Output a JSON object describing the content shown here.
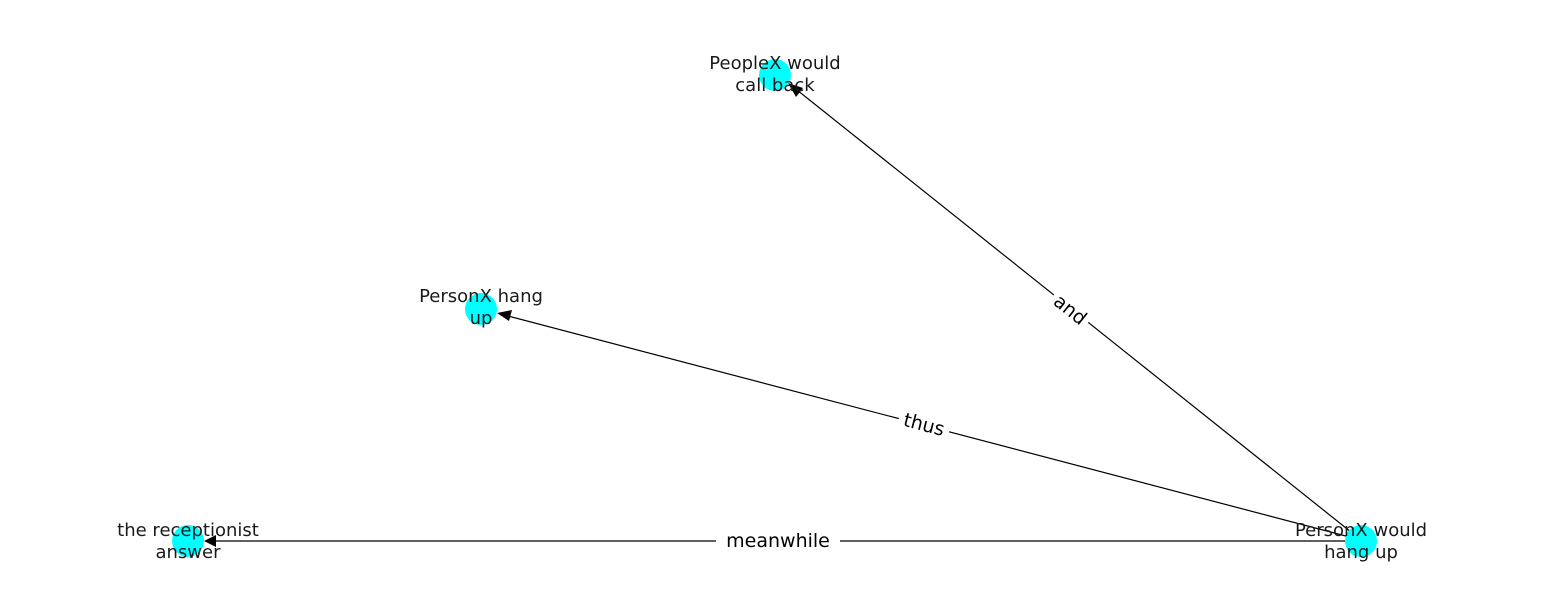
{
  "colors": {
    "node": "#00ffff",
    "edge": "#000000",
    "text": "#1a1a1a"
  },
  "nodes": {
    "person_would_hang_up": {
      "lines": [
        "PersonX would",
        "hang up"
      ]
    },
    "people_call_back": {
      "lines": [
        "PeopleX would",
        "call back"
      ]
    },
    "person_hang_up": {
      "lines": [
        "PersonX hang",
        "up"
      ]
    },
    "receptionist": {
      "lines": [
        "the receptionist",
        "answer"
      ]
    }
  },
  "edges": {
    "and": {
      "source": "person_would_hang_up",
      "target": "people_call_back",
      "label": "and"
    },
    "thus": {
      "source": "person_would_hang_up",
      "target": "person_hang_up",
      "label": "thus"
    },
    "meanwhile": {
      "source": "person_would_hang_up",
      "target": "receptionist",
      "label": "meanwhile"
    }
  }
}
